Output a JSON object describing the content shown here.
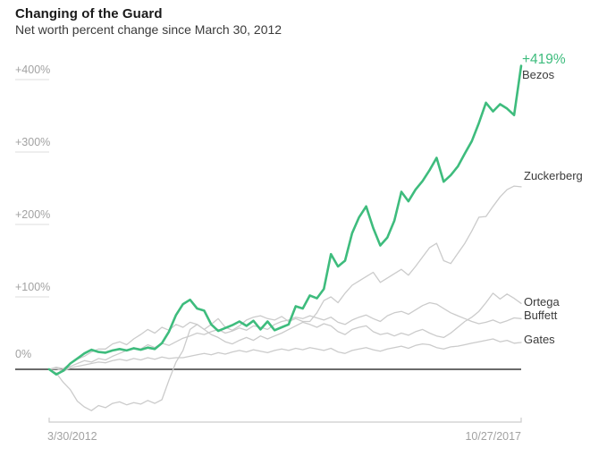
{
  "title": "Changing of the Guard",
  "subtitle": "Net worth percent change since March 30, 2012",
  "colors": {
    "highlight_green": "#3ebc7d",
    "muted_line_gray": "#cbcbcb",
    "zero_line": "#6a6a6a",
    "axis_gray": "#cccccc",
    "grid_tick": "#dedede",
    "label_gray": "#a2a2a2",
    "text_dark": "#3b3b3b"
  },
  "chart_data": {
    "type": "line",
    "title": "Changing of the Guard",
    "subtitle": "Net worth percent change since March 30, 2012",
    "x_description": "monthly values, March 30 2012 through October 27 2017",
    "x_labels": [
      "3/30/2012",
      "10/27/2017"
    ],
    "y_ticks": [
      "+400%",
      "+300%",
      "+200%",
      "+100%",
      "0%"
    ],
    "y_tick_values": [
      400,
      300,
      200,
      100,
      0
    ],
    "ylim": [
      -70,
      440
    ],
    "grid": "short left ticks per y label; dark emphasized zero baseline",
    "legend_position": "direct line-end labels at right edge",
    "annotation": {
      "text": "+419%",
      "series": "Bezos"
    },
    "series": [
      {
        "name": "Bezos",
        "end_label": "Bezos",
        "end_value_label": "+419%",
        "highlight": true,
        "color": "#3ebc7d",
        "values": [
          0,
          -7,
          -2,
          8,
          15,
          22,
          27,
          24,
          23,
          26,
          28,
          26,
          29,
          27,
          30,
          28,
          36,
          52,
          75,
          90,
          96,
          84,
          81,
          62,
          53,
          57,
          61,
          66,
          60,
          67,
          55,
          66,
          54,
          58,
          62,
          87,
          84,
          102,
          98,
          111,
          159,
          142,
          150,
          188,
          210,
          225,
          195,
          171,
          182,
          205,
          245,
          232,
          248,
          260,
          275,
          292,
          259,
          268,
          280,
          298,
          315,
          340,
          368,
          356,
          366,
          360,
          351,
          419
        ]
      },
      {
        "name": "Zuckerberg",
        "end_label": "Zuckerberg",
        "highlight": false,
        "color": "#cbcbcb",
        "values": [
          0,
          -5,
          -18,
          -28,
          -44,
          -52,
          -57,
          -50,
          -53,
          -47,
          -45,
          -49,
          -46,
          -48,
          -43,
          -47,
          -42,
          -15,
          10,
          26,
          55,
          62,
          55,
          62,
          70,
          58,
          54,
          60,
          68,
          72,
          74,
          70,
          68,
          73,
          66,
          70,
          66,
          66,
          78,
          95,
          100,
          92,
          105,
          116,
          122,
          128,
          134,
          120,
          126,
          132,
          138,
          130,
          142,
          155,
          168,
          174,
          150,
          146,
          160,
          174,
          191,
          210,
          211,
          225,
          238,
          248,
          253,
          252
        ]
      },
      {
        "name": "Ortega",
        "end_label": "Ortega",
        "highlight": false,
        "color": "#cbcbcb",
        "values": [
          0,
          3,
          1,
          8,
          14,
          18,
          24,
          28,
          28,
          35,
          38,
          34,
          42,
          48,
          55,
          50,
          58,
          54,
          62,
          58,
          65,
          62,
          55,
          48,
          44,
          38,
          35,
          40,
          44,
          40,
          46,
          42,
          46,
          50,
          55,
          60,
          65,
          62,
          58,
          63,
          60,
          52,
          48,
          55,
          58,
          60,
          52,
          48,
          50,
          46,
          50,
          47,
          52,
          55,
          50,
          46,
          44,
          50,
          58,
          66,
          72,
          80,
          92,
          105,
          97,
          104,
          98,
          91
        ]
      },
      {
        "name": "Buffett",
        "end_label": "Buffett",
        "highlight": false,
        "color": "#cbcbcb",
        "values": [
          0,
          2,
          -2,
          4,
          8,
          12,
          10,
          15,
          13,
          18,
          22,
          26,
          30,
          28,
          34,
          30,
          36,
          33,
          38,
          43,
          46,
          50,
          48,
          52,
          55,
          50,
          53,
          57,
          54,
          60,
          58,
          55,
          62,
          66,
          68,
          72,
          70,
          74,
          71,
          68,
          72,
          65,
          62,
          68,
          72,
          75,
          70,
          66,
          74,
          78,
          80,
          76,
          82,
          88,
          92,
          90,
          84,
          78,
          74,
          70,
          66,
          63,
          65,
          68,
          64,
          67,
          71,
          70
        ]
      },
      {
        "name": "Gates",
        "end_label": "Gates",
        "highlight": false,
        "color": "#cbcbcb",
        "values": [
          0,
          1,
          -3,
          2,
          4,
          6,
          8,
          10,
          9,
          12,
          14,
          12,
          15,
          13,
          16,
          14,
          17,
          15,
          16,
          16,
          18,
          20,
          22,
          20,
          23,
          21,
          24,
          26,
          24,
          27,
          25,
          23,
          26,
          28,
          26,
          29,
          27,
          30,
          28,
          26,
          29,
          24,
          22,
          26,
          28,
          30,
          27,
          25,
          28,
          30,
          32,
          29,
          33,
          35,
          34,
          30,
          28,
          31,
          32,
          34,
          36,
          38,
          40,
          42,
          38,
          40,
          36,
          37
        ]
      }
    ]
  }
}
